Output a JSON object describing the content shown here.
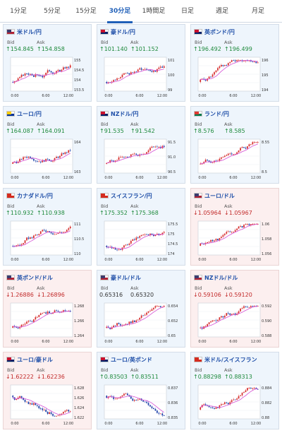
{
  "tabs": [
    "1分足",
    "5分足",
    "15分足",
    "30分足",
    "1時間足",
    "日足",
    "週足",
    "月足"
  ],
  "active_tab": 3,
  "labels": {
    "bid": "Bid",
    "ask": "Ask"
  },
  "cards": [
    {
      "name": "米ドル/円",
      "bid": "↑154.845",
      "ask": "↑154.858",
      "dir": "up",
      "ticks": [
        "155",
        "154.5",
        "154",
        "153.5"
      ],
      "flag": [
        "#b22234",
        "#3c3b6e"
      ],
      "chart": {
        "type": "candlestick",
        "x_labels": [
          "0:00",
          "6:00",
          "12:00"
        ],
        "trend": "up"
      }
    },
    {
      "name": "豪ドル/円",
      "bid": "↑101.140",
      "ask": "↑101.152",
      "dir": "up",
      "ticks": [
        "101",
        "100",
        "99"
      ],
      "flag": [
        "#012169",
        "#c8102e"
      ],
      "chart": {
        "type": "candlestick",
        "x_labels": [
          "0:00",
          "6:00",
          "12:00"
        ],
        "trend": "up"
      }
    },
    {
      "name": "英ポンド/円",
      "bid": "↑196.492",
      "ask": "↑196.499",
      "dir": "up",
      "ticks": [
        "196",
        "195",
        "194"
      ],
      "flag": [
        "#012169",
        "#c8102e"
      ],
      "chart": {
        "type": "candlestick",
        "x_labels": [
          "0:00",
          "6:00",
          "12:00"
        ],
        "trend": "up"
      }
    },
    {
      "name": "ユーロ/円",
      "bid": "↑164.087",
      "ask": "↑164.091",
      "dir": "up",
      "ticks": [
        "164",
        "163"
      ],
      "flag": [
        "#003399",
        "#ffcc00"
      ],
      "chart": {
        "type": "candlestick",
        "x_labels": [
          "0:00",
          "6:00",
          "12:00"
        ],
        "trend": "up"
      }
    },
    {
      "name": "NZドル/円",
      "bid": "↑91.535",
      "ask": "↑91.542",
      "dir": "up",
      "ticks": [
        "91.5",
        "91.0",
        "90.5"
      ],
      "flag": [
        "#012169",
        "#c8102e"
      ],
      "chart": {
        "type": "candlestick",
        "x_labels": [
          "0:00",
          "6:00",
          "12:00"
        ],
        "trend": "up"
      }
    },
    {
      "name": "ランド/円",
      "bid": "↑8.576",
      "ask": "↑8.585",
      "dir": "up",
      "ticks": [
        "8.55",
        "8.5"
      ],
      "flag": [
        "#007a4d",
        "#de3831"
      ],
      "chart": {
        "type": "candlestick",
        "x_labels": [
          "0:00",
          "6:00",
          "12:00"
        ],
        "trend": "up"
      }
    },
    {
      "name": "カナダドル/円",
      "bid": "↑110.932",
      "ask": "↑110.938",
      "dir": "up",
      "ticks": [
        "111",
        "110.5",
        "110"
      ],
      "flag": [
        "#d52b1e",
        "#d52b1e"
      ],
      "chart": {
        "type": "candlestick",
        "x_labels": [
          "0:00",
          "6:00",
          "12:00"
        ],
        "trend": "up"
      }
    },
    {
      "name": "スイスフラン/円",
      "bid": "↑175.352",
      "ask": "↑175.368",
      "dir": "up",
      "ticks": [
        "175.5",
        "175",
        "174.5",
        "174"
      ],
      "flag": [
        "#d52b1e",
        "#d52b1e"
      ],
      "chart": {
        "type": "candlestick",
        "x_labels": [
          "0:00",
          "6:00",
          "12:00"
        ],
        "trend": "up"
      }
    },
    {
      "name": "ユーロ/ドル",
      "bid": "↓1.05964",
      "ask": "↓1.05967",
      "dir": "down",
      "ticks": [
        "1.06",
        "1.058",
        "1.056"
      ],
      "flag": [
        "#b22234",
        "#3c3b6e"
      ],
      "chart": {
        "type": "candlestick",
        "x_labels": [
          "0:00",
          "6:00",
          "12:00"
        ],
        "trend": "up"
      }
    },
    {
      "name": "英ポンド/ドル",
      "bid": "↓1.26886",
      "ask": "↓1.26896",
      "dir": "down",
      "ticks": [
        "1.268",
        "1.266",
        "1.264"
      ],
      "flag": [
        "#b22234",
        "#3c3b6e"
      ],
      "chart": {
        "type": "candlestick",
        "x_labels": [
          "0:00",
          "6:00",
          "12:00"
        ],
        "trend": "up"
      }
    },
    {
      "name": "豪ドル/ドル",
      "bid": "0.65316",
      "ask": "0.65320",
      "dir": "flat",
      "ticks": [
        "0.654",
        "0.652",
        "0.65"
      ],
      "flag": [
        "#b22234",
        "#3c3b6e"
      ],
      "chart": {
        "type": "candlestick",
        "x_labels": [
          "0:00",
          "6:00",
          "12:00"
        ],
        "trend": "up"
      }
    },
    {
      "name": "NZドル/ドル",
      "bid": "↓0.59106",
      "ask": "↓0.59120",
      "dir": "down",
      "ticks": [
        "0.592",
        "0.590",
        "0.588"
      ],
      "flag": [
        "#b22234",
        "#3c3b6e"
      ],
      "chart": {
        "type": "candlestick",
        "x_labels": [
          "0:00",
          "6:00",
          "12:00"
        ],
        "trend": "up"
      }
    },
    {
      "name": "ユーロ/豪ドル",
      "bid": "↓1.62222",
      "ask": "↓1.62236",
      "dir": "down",
      "ticks": [
        "1.628",
        "1.626",
        "1.624",
        "1.622"
      ],
      "flag": [
        "#012169",
        "#c8102e"
      ],
      "chart": {
        "type": "candlestick",
        "x_labels": [
          "0:00",
          "6:00",
          "12:00"
        ],
        "trend": "down"
      }
    },
    {
      "name": "ユーロ/英ポンド",
      "bid": "↑0.83503",
      "ask": "↑0.83511",
      "dir": "up",
      "ticks": [
        "0.837",
        "0.836",
        "0.835"
      ],
      "flag": [
        "#012169",
        "#c8102e"
      ],
      "chart": {
        "type": "candlestick",
        "x_labels": [
          "0:00",
          "6:00",
          "12:00"
        ],
        "trend": "down"
      }
    },
    {
      "name": "米ドル/スイスフラン",
      "bid": "↑0.88298",
      "ask": "↑0.88313",
      "dir": "up",
      "ticks": [
        "0.884",
        "0.882",
        "0.88"
      ],
      "flag": [
        "#d52b1e",
        "#d52b1e"
      ],
      "chart": {
        "type": "candlestick",
        "x_labels": [
          "0:00",
          "6:00",
          "12:00"
        ],
        "trend": "up"
      }
    }
  ]
}
